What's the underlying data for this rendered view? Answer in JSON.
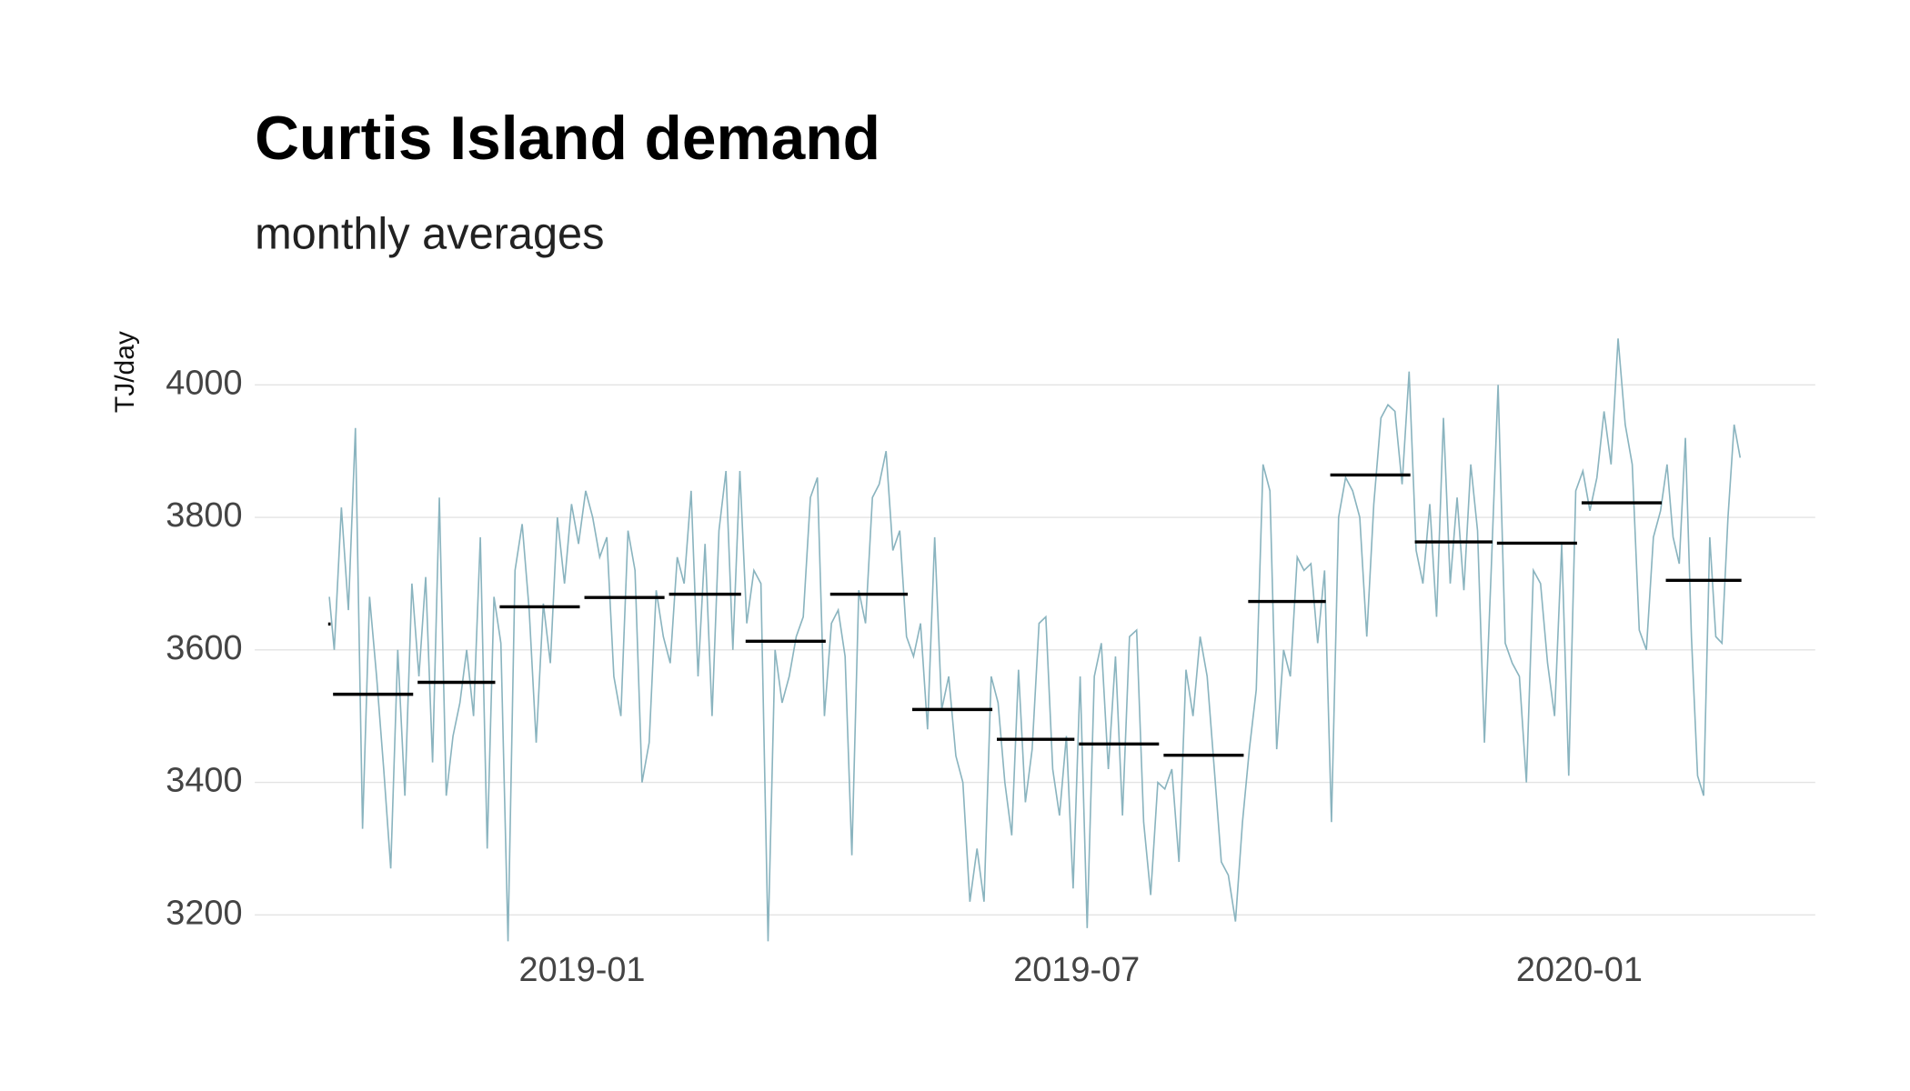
{
  "chart_data": {
    "type": "line",
    "title": "Curtis Island demand",
    "subtitle": "monthly averages",
    "ylabel": "TJ/day",
    "ylim": [
      3155,
      4085
    ],
    "yticks": [
      3200,
      3400,
      3600,
      3800,
      4000
    ],
    "xticks": [
      "2019-01",
      "2019-07",
      "2020-01"
    ],
    "grid": true,
    "months": [
      "2018-09",
      "2018-10",
      "2018-11",
      "2018-12",
      "2019-01",
      "2019-02",
      "2019-03",
      "2019-04",
      "2019-05",
      "2019-06",
      "2019-07",
      "2019-08",
      "2019-09",
      "2019-10",
      "2019-11",
      "2019-12",
      "2020-01",
      "2020-02"
    ],
    "series": [
      {
        "color": "#8ab4bf",
        "values": [
          [
            3680
          ],
          [
            3600,
            3815,
            3660,
            3935,
            3330,
            3680,
            3560,
            3420,
            3270,
            3600,
            3380,
            3700
          ],
          [
            3560,
            3710,
            3430,
            3830,
            3380,
            3470,
            3520,
            3600,
            3500,
            3770,
            3300,
            3680
          ],
          [
            3610,
            3160,
            3720,
            3790,
            3660,
            3460,
            3670,
            3580,
            3800,
            3700,
            3820,
            3760
          ],
          [
            3840,
            3800,
            3740,
            3770,
            3560,
            3500,
            3780,
            3720,
            3400,
            3460,
            3690,
            3620
          ],
          [
            3580,
            3740,
            3700,
            3840,
            3560,
            3760,
            3500,
            3780,
            3870,
            3600,
            3870
          ],
          [
            3640,
            3720,
            3700,
            3160,
            3600,
            3520,
            3560,
            3620,
            3650,
            3830,
            3860,
            3500
          ],
          [
            3640,
            3660,
            3590,
            3290,
            3690,
            3640,
            3830,
            3850,
            3900,
            3750,
            3780,
            3620
          ],
          [
            3590,
            3640,
            3480,
            3770,
            3510,
            3560,
            3440,
            3400,
            3220,
            3300,
            3220,
            3560
          ],
          [
            3520,
            3400,
            3320,
            3570,
            3370,
            3450,
            3640,
            3650,
            3420,
            3350,
            3470,
            3240
          ],
          [
            3560,
            3180,
            3560,
            3610,
            3420,
            3590,
            3350,
            3620,
            3630,
            3340,
            3230,
            3400
          ],
          [
            3390,
            3420,
            3280,
            3570,
            3500,
            3620,
            3560,
            3420,
            3280,
            3260,
            3190,
            3340
          ],
          [
            3450,
            3540,
            3880,
            3840,
            3450,
            3600,
            3560,
            3740,
            3720,
            3730,
            3610,
            3720
          ],
          [
            3340,
            3800,
            3860,
            3840,
            3800,
            3620,
            3820,
            3950,
            3970,
            3960,
            3850,
            4020
          ],
          [
            3750,
            3700,
            3820,
            3650,
            3950,
            3700,
            3830,
            3690,
            3880,
            3780,
            3460,
            3720
          ],
          [
            4000,
            3610,
            3580,
            3560,
            3400,
            3720,
            3700,
            3580,
            3500,
            3760,
            3410,
            3840
          ],
          [
            3870,
            3810,
            3860,
            3960,
            3880,
            4070,
            3940,
            3880,
            3630,
            3600,
            3770,
            3810
          ],
          [
            3880,
            3770,
            3730,
            3920,
            3620,
            3410,
            3380,
            3770,
            3620,
            3610,
            3800,
            3940,
            3890
          ]
        ]
      },
      {
        "color": "#000000",
        "values": [
          3639,
          3533,
          3551,
          3665,
          3679,
          3684,
          3613,
          3684,
          3510,
          3465,
          3458,
          3441,
          3673,
          3864,
          3763,
          3761,
          3822,
          3705
        ]
      }
    ]
  }
}
